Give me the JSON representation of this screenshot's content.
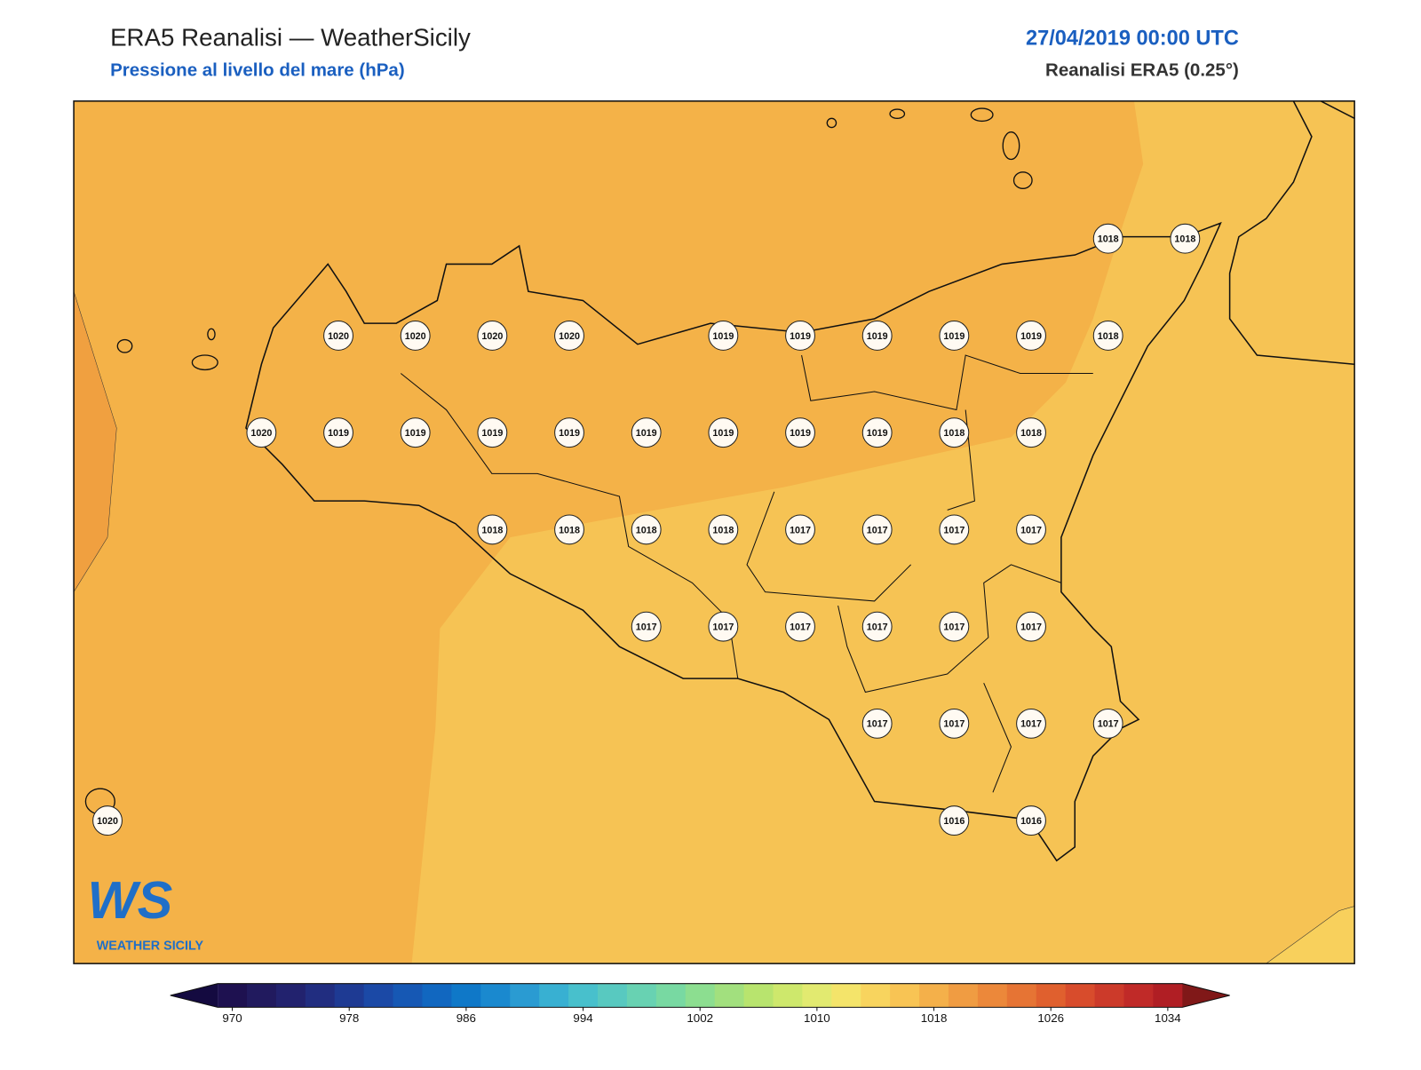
{
  "header": {
    "title": "ERA5 Reanalisi — WeatherSicily",
    "subtitle": "Pressione al livello del mare (hPa)",
    "datetime": "27/04/2019 00:00 UTC",
    "model": "Reanalisi ERA5 (0.25°)"
  },
  "stations": {
    "grid": [
      [
        null,
        null,
        null,
        null,
        null,
        null,
        null,
        null,
        null,
        null,
        null,
        null,
        null,
        1018,
        1018
      ],
      [
        null,
        null,
        null,
        1020,
        1020,
        1020,
        1020,
        null,
        1019,
        1019,
        1019,
        1019,
        1019,
        1018,
        null
      ],
      [
        null,
        null,
        1020,
        1019,
        1019,
        1019,
        1019,
        1019,
        1019,
        1019,
        1019,
        1018,
        1018,
        null,
        null
      ],
      [
        null,
        null,
        null,
        null,
        null,
        1018,
        1018,
        1018,
        1018,
        1017,
        1017,
        1017,
        1017,
        null,
        null
      ],
      [
        null,
        null,
        null,
        null,
        null,
        null,
        null,
        1017,
        1017,
        1017,
        1017,
        1017,
        1017,
        null,
        null
      ],
      [
        null,
        null,
        null,
        null,
        null,
        null,
        null,
        null,
        null,
        null,
        1017,
        1017,
        1017,
        1017,
        null
      ],
      [
        1020,
        null,
        null,
        null,
        null,
        null,
        null,
        null,
        null,
        null,
        null,
        1016,
        1016,
        null,
        null
      ]
    ]
  },
  "colorbar": {
    "ticks": [
      970,
      978,
      986,
      994,
      1002,
      1010,
      1018,
      1026,
      1034
    ],
    "colors": [
      "#1e1150",
      "#211a5e",
      "#22226e",
      "#212d80",
      "#1e3a93",
      "#1b49a6",
      "#1658b4",
      "#1167c0",
      "#0f78c8",
      "#1a89cf",
      "#2a9bd2",
      "#38b0d2",
      "#48c0cc",
      "#58c9c0",
      "#68d2b2",
      "#78d9a2",
      "#8cde90",
      "#a2e07e",
      "#b8e46e",
      "#cee86c",
      "#e2ea70",
      "#f4e46a",
      "#f8d45e",
      "#f8c454",
      "#f4b04a",
      "#f09c42",
      "#ec883a",
      "#e67434",
      "#e0602e",
      "#d84c2c",
      "#cc3a2a",
      "#c02a28",
      "#b01e24"
    ],
    "under": "#140a40",
    "over": "#801818"
  },
  "logo": {
    "mark": "WS",
    "text": "WEATHER SICILY"
  }
}
